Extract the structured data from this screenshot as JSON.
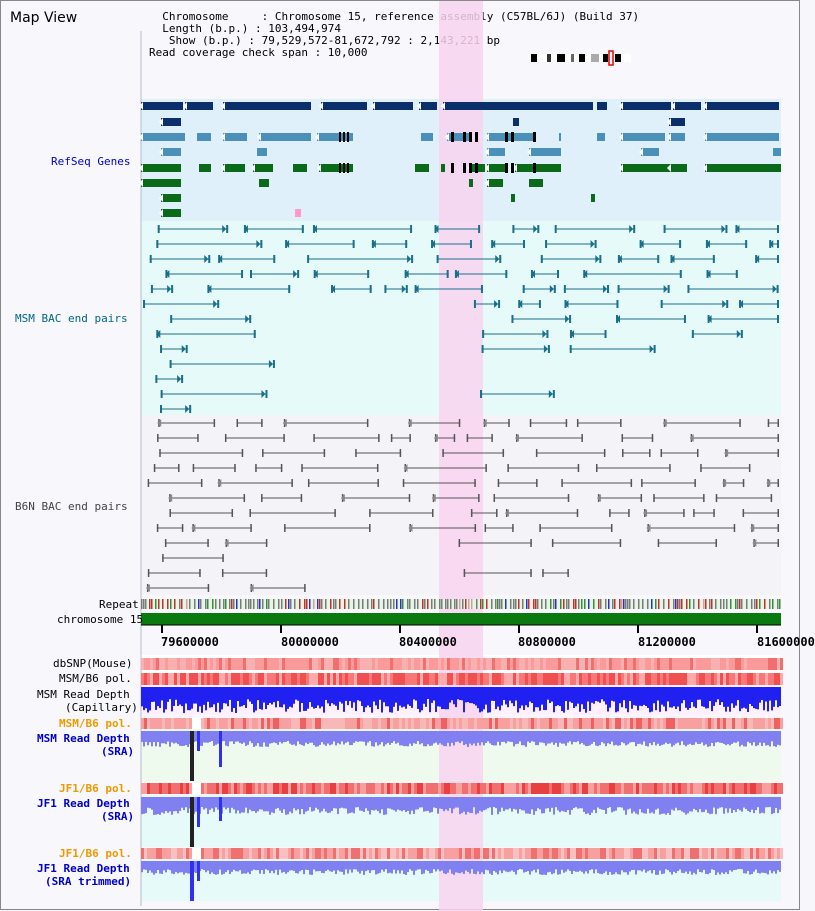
{
  "header": {
    "title": "Map View",
    "info_lines": [
      "  Chromosome     : Chromosome 15, reference assembly (C57BL/6J) (Build 37)",
      "  Length (b.p.) : 103,494,974",
      "   Show (b.p.) : 79,529,572-81,672,792 : 2,143,221 bp",
      "Read coverage check span : 10,000"
    ]
  },
  "tracks": {
    "refseq": {
      "label": "RefSeq Genes",
      "color": "#0000cc"
    },
    "msm_bac": {
      "label": "MSM BAC end pairs",
      "color": "#006688"
    },
    "b6n_bac": {
      "label": "B6N BAC end pairs",
      "color": "#444444"
    },
    "repeat": {
      "label": "Repeat"
    },
    "chromosome": {
      "label": "chromosome 15"
    },
    "dbsnp": {
      "label": "dbSNP(Mouse)"
    },
    "msm_b6_pol": {
      "label": "MSM/B6 pol."
    },
    "msm_read_depth_cap": {
      "label1": "MSM Read Depth",
      "label2": "(Capillary)"
    },
    "msm_b6_pol2": {
      "label": "MSM/B6 pol.",
      "color": "#ee9900"
    },
    "msm_read_depth_sra": {
      "label1": "MSM Read Depth",
      "label2": "(SRA)",
      "color": "#0000cc"
    },
    "jf1_b6_pol": {
      "label": "JF1/B6 pol.",
      "color": "#ee9900"
    },
    "jf1_read_depth_sra": {
      "label1": "JF1 Read Depth",
      "label2": "(SRA)",
      "color": "#0000cc"
    },
    "jf1_b6_pol2": {
      "label": "JF1/B6 pol.",
      "color": "#ee9900"
    },
    "jf1_read_depth_trim": {
      "label1": "JF1 Read Depth",
      "label2": "(SRA trimmed)",
      "color": "#0000cc"
    }
  },
  "axis": {
    "ticks": [
      "79600000",
      "80000000",
      "80400000",
      "80800000",
      "81200000",
      "81600000"
    ]
  },
  "colors": {
    "highlight": "#f8d4f0",
    "refseq_dark": "#0b2f6b",
    "refseq_mid": "#4a90b8",
    "refseq_green": "#0a6a1a",
    "chrom_bar": "#0a7a10",
    "depth_dark": "#1010ee",
    "depth_light": "#8080f0"
  }
}
